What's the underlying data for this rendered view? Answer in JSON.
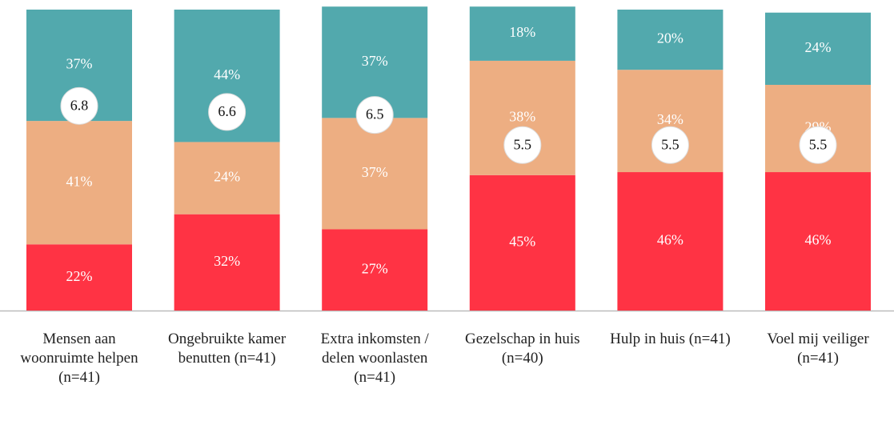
{
  "chart_data": {
    "type": "stacked-bar",
    "categories": [
      "Mensen aan woonruimte helpen (n=41)",
      "Ongebruikte kamer benutten (n=41)",
      "Extra inkomsten / delen woonlasten (n=41)",
      "Gezelschap in huis (n=40)",
      "Hulp in huis (n=41)",
      "Voel mij veiliger (n=41)"
    ],
    "ylim": [
      0,
      100
    ],
    "series": [
      {
        "color": "#ff3344",
        "values": [
          22,
          32,
          27,
          45,
          46,
          46
        ],
        "value_labels": [
          "22%",
          "32%",
          "27%",
          "45%",
          "46%",
          "46%"
        ]
      },
      {
        "color": "#edae82",
        "values": [
          41,
          24,
          37,
          38,
          34,
          29
        ],
        "value_labels": [
          "41%",
          "24%",
          "37%",
          "38%",
          "34%",
          "29%"
        ]
      },
      {
        "color": "#52a9ad",
        "values": [
          37,
          44,
          37,
          18,
          20,
          24
        ],
        "value_labels": [
          "37%",
          "44%",
          "37%",
          "18%",
          "20%",
          "24%"
        ]
      },
      {
        "axis": "y2",
        "values": [
          6.8,
          6.6,
          6.5,
          5.5,
          5.5,
          5.5
        ]
      }
    ],
    "y2lim": [
      0,
      10
    ]
  }
}
